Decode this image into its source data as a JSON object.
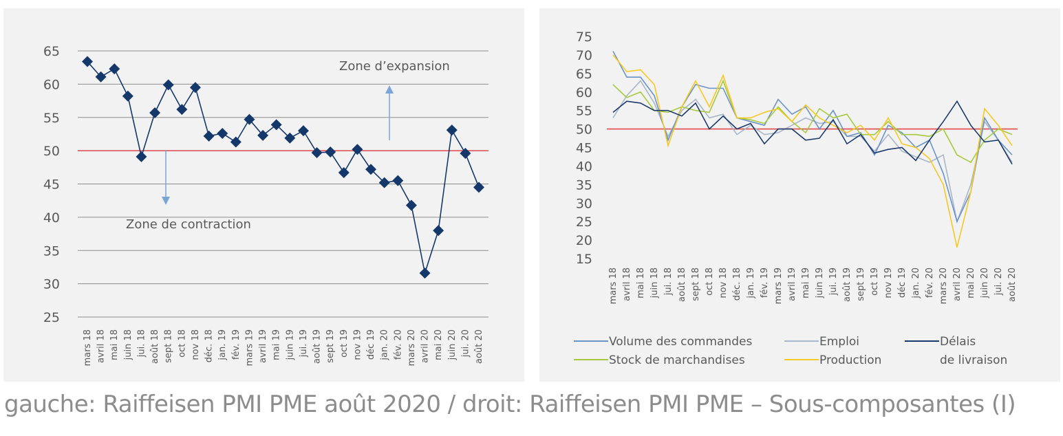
{
  "caption": "gauche: Raiffeisen PMI PME août 2020 / droit: Raiffeisen PMI PME – Sous-composantes (I)",
  "colors": {
    "panel_bg": "#f2f2f2",
    "grid": "#8c8c8c",
    "threshold": "#e2474b",
    "pmi": "#15386b",
    "volume": "#6a93c6",
    "emploi": "#a8b6c8",
    "delais": "#1b3a6b",
    "stock": "#a6c93c",
    "production": "#f6c823",
    "arrow": "#7aa6d6"
  },
  "chart_data": [
    {
      "type": "line",
      "categories": [
        "mars 18",
        "avril 18",
        "mai 18",
        "juin 18",
        "jui. 18",
        "août 18",
        "sept 18",
        "oct 18",
        "nov 18",
        "déc. 18",
        "jan. 19",
        "fév. 19",
        "mars 19",
        "avril 19",
        "mai 19",
        "juin 19",
        "jui. 19",
        "août 19",
        "sept 19",
        "oct 19",
        "nov 19",
        "déc 19",
        "jan. 20",
        "fév. 20",
        "mars 20",
        "avril 20",
        "mai 20",
        "juin 20",
        "jui. 20",
        "août 20"
      ],
      "yticks": [
        25,
        30,
        35,
        40,
        45,
        50,
        55,
        60,
        65
      ],
      "ylim": [
        25,
        65
      ],
      "threshold": 50,
      "series": [
        {
          "values": [
            63.4,
            61.1,
            62.3,
            58.2,
            49.1,
            55.7,
            59.9,
            56.2,
            59.5,
            52.2,
            52.6,
            51.3,
            54.7,
            52.3,
            53.9,
            51.9,
            53.0,
            49.7,
            49.8,
            46.7,
            50.2,
            47.2,
            45.2,
            45.5,
            41.8,
            31.6,
            38.0,
            53.1,
            49.6,
            44.5
          ]
        }
      ],
      "annotations": {
        "expansion": "Zone d’expansion",
        "contraction": "Zone de contraction"
      }
    },
    {
      "type": "line",
      "categories": [
        "mars 18",
        "avril 18",
        "mai 18",
        "juin 18",
        "jui. 18",
        "août 18",
        "sept 18",
        "oct 18",
        "nov 18",
        "déc. 18",
        "jan. 19",
        "fév. 19",
        "mars 19",
        "avril 19",
        "mai 19",
        "juin 19",
        "jui. 19",
        "août 19",
        "sept 19",
        "oct 19",
        "nov 19",
        "déc 19",
        "jan. 20",
        "fév. 20",
        "mars 20",
        "avril 20",
        "mai 20",
        "juin 20",
        "jui. 20",
        "août 20"
      ],
      "yticks": [
        15,
        20,
        25,
        30,
        35,
        40,
        45,
        50,
        55,
        60,
        65,
        70,
        75
      ],
      "ylim": [
        15,
        75
      ],
      "threshold": 50,
      "series": [
        {
          "name": "Volume des commandes",
          "values": [
            71,
            64,
            64,
            59,
            47,
            56,
            62,
            61,
            61,
            53,
            52,
            51,
            58,
            54,
            56,
            50,
            55,
            48,
            49,
            43,
            51,
            49,
            45,
            47,
            38,
            25,
            33,
            53,
            47,
            43
          ]
        },
        {
          "name": "Emploi",
          "values": [
            53,
            59,
            63,
            57,
            48,
            55,
            58,
            53,
            54,
            48.5,
            51,
            48.5,
            49,
            51,
            53,
            51.5,
            52,
            48,
            48,
            44,
            48.5,
            44,
            42.5,
            41,
            43,
            25,
            35,
            52,
            47,
            41
          ]
        },
        {
          "name": "Délais de livraison",
          "values": [
            54.5,
            57.5,
            57,
            55,
            55,
            53.5,
            57,
            50,
            53.5,
            50,
            51.5,
            46,
            50,
            50,
            47,
            47.5,
            52.5,
            46,
            48.5,
            43.5,
            44.5,
            45,
            41.5,
            47,
            52,
            57.5,
            51,
            46.5,
            47,
            40.5
          ]
        },
        {
          "name": "Stock de marchandises",
          "values": [
            62,
            58.5,
            60,
            55,
            54.5,
            56,
            55,
            54.5,
            63,
            53,
            52.5,
            51.5,
            56,
            52,
            49,
            55.5,
            53,
            54,
            48.5,
            48.5,
            52,
            48.5,
            48.5,
            48,
            50,
            43,
            41,
            47,
            50,
            48.5
          ]
        },
        {
          "name": "Production",
          "values": [
            70,
            65.5,
            66,
            62,
            45.5,
            56,
            63,
            56,
            64.5,
            53,
            53,
            54.5,
            55.5,
            52,
            56.5,
            53,
            51,
            49,
            51,
            47,
            53,
            46,
            45,
            42,
            35,
            18,
            33,
            55.5,
            51,
            45.5
          ]
        }
      ],
      "legend": {
        "volume": "Volume des commandes",
        "emploi": "Emploi",
        "delais_1": "Délais",
        "delais_2": "de livraison",
        "stock": "Stock de marchandises",
        "production": "Production"
      }
    }
  ]
}
